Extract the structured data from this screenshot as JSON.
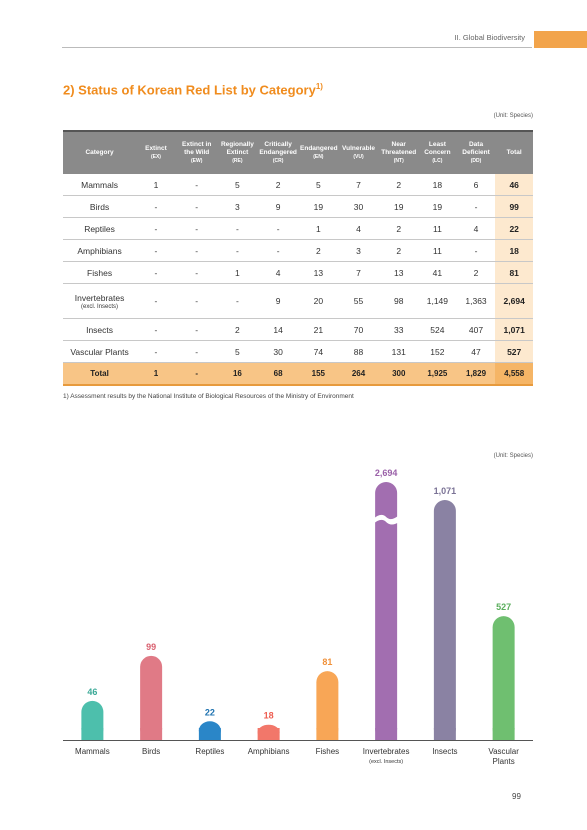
{
  "header": {
    "section": "II. Global Biodiversity"
  },
  "title": {
    "text": "2) Status of Korean Red List by Category",
    "note": "1)"
  },
  "unit": "(Unit: Species)",
  "table": {
    "columns": [
      {
        "name": "Category",
        "abbr": ""
      },
      {
        "name": "Extinct",
        "abbr": "(EX)"
      },
      {
        "name": "Extinct in the Wild",
        "abbr": "(EW)"
      },
      {
        "name": "Regionally Extinct",
        "abbr": "(RE)"
      },
      {
        "name": "Critically Endangered",
        "abbr": "(CR)"
      },
      {
        "name": "Endangered",
        "abbr": "(EN)"
      },
      {
        "name": "Vulnerable",
        "abbr": "(VU)"
      },
      {
        "name": "Near Threatened",
        "abbr": "(NT)"
      },
      {
        "name": "Least Concern",
        "abbr": "(LC)"
      },
      {
        "name": "Data Deficient",
        "abbr": "(DD)"
      },
      {
        "name": "Total",
        "abbr": ""
      }
    ],
    "rows": [
      {
        "category": "Mammals",
        "sub": "",
        "values": [
          "1",
          "-",
          "5",
          "2",
          "5",
          "7",
          "2",
          "18",
          "6"
        ],
        "total": "46"
      },
      {
        "category": "Birds",
        "sub": "",
        "values": [
          "-",
          "-",
          "3",
          "9",
          "19",
          "30",
          "19",
          "19",
          "-"
        ],
        "total": "99"
      },
      {
        "category": "Reptiles",
        "sub": "",
        "values": [
          "-",
          "-",
          "-",
          "-",
          "1",
          "4",
          "2",
          "11",
          "4"
        ],
        "total": "22"
      },
      {
        "category": "Amphibians",
        "sub": "",
        "values": [
          "-",
          "-",
          "-",
          "-",
          "2",
          "3",
          "2",
          "11",
          "-"
        ],
        "total": "18"
      },
      {
        "category": "Fishes",
        "sub": "",
        "values": [
          "-",
          "-",
          "1",
          "4",
          "13",
          "7",
          "13",
          "41",
          "2"
        ],
        "total": "81"
      },
      {
        "category": "Invertebrates",
        "sub": "(excl. Insects)",
        "values": [
          "-",
          "-",
          "-",
          "9",
          "20",
          "55",
          "98",
          "1,149",
          "1,363"
        ],
        "total": "2,694"
      },
      {
        "category": "Insects",
        "sub": "",
        "values": [
          "-",
          "-",
          "2",
          "14",
          "21",
          "70",
          "33",
          "524",
          "407"
        ],
        "total": "1,071"
      },
      {
        "category": "Vascular Plants",
        "sub": "",
        "values": [
          "-",
          "-",
          "5",
          "30",
          "74",
          "88",
          "131",
          "152",
          "47"
        ],
        "total": "527"
      }
    ],
    "total_row": {
      "category": "Total",
      "values": [
        "1",
        "-",
        "16",
        "68",
        "155",
        "264",
        "300",
        "1,925",
        "1,829"
      ],
      "total": "4,558"
    }
  },
  "footnote": "1) Assessment results by the National Institute of Biological Resources of the Ministry of Environment",
  "chart_unit": "(Unit: Species)",
  "chart_data": {
    "type": "bar",
    "categories": [
      "Mammals",
      "Birds",
      "Reptiles",
      "Amphibians",
      "Fishes",
      "Invertebrates",
      "Insects",
      "Vascular Plants"
    ],
    "category_sub": [
      "",
      "",
      "",
      "",
      "",
      "(excl. Insects)",
      "",
      ""
    ],
    "values": [
      46,
      99,
      22,
      18,
      81,
      2694,
      1071,
      527
    ],
    "labels": [
      "46",
      "99",
      "22",
      "18",
      "81",
      "2,694",
      "1,071",
      "527"
    ],
    "colors": [
      "#4dbfac",
      "#e07a86",
      "#2a86c8",
      "#f2776a",
      "#f8a656",
      "#a26eb0",
      "#8a82a3",
      "#6fbf70"
    ],
    "label_colors": [
      "#3aa997",
      "#d9606f",
      "#1f73b0",
      "#ee5c4f",
      "#f0913a",
      "#9a60a8",
      "#7a7295",
      "#5aae5c"
    ],
    "broken_axis": true
  },
  "page_number": "99"
}
